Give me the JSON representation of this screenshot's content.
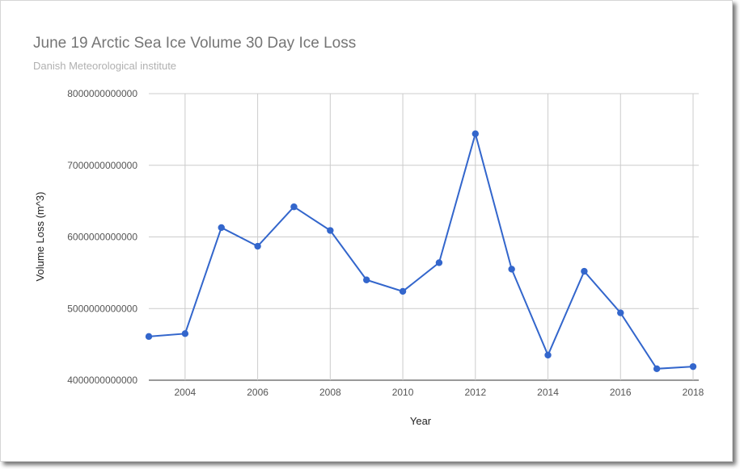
{
  "chart_data": {
    "type": "line",
    "title": "June 19 Arctic Sea Ice Volume 30 Day Ice Loss",
    "subtitle": "Danish Meteorological institute",
    "xlabel": "Year",
    "ylabel": "Volume Loss (m^3)",
    "x": [
      2003,
      2004,
      2005,
      2006,
      2007,
      2008,
      2009,
      2010,
      2011,
      2012,
      2013,
      2014,
      2015,
      2016,
      2017,
      2018
    ],
    "series": [
      {
        "values": [
          4610000000000,
          4650000000000,
          6130000000000,
          5870000000000,
          6420000000000,
          6090000000000,
          5400000000000,
          5240000000000,
          5640000000000,
          7440000000000,
          5550000000000,
          4350000000000,
          5520000000000,
          4940000000000,
          4160000000000,
          4190000000000
        ],
        "color": "#3366cc"
      }
    ],
    "xlim": [
      2003,
      2018
    ],
    "ylim": [
      4000000000000,
      8000000000000
    ],
    "x_ticks": [
      "2004",
      "2006",
      "2008",
      "2010",
      "2012",
      "2014",
      "2016",
      "2018"
    ],
    "y_ticks": [
      "4000000000000",
      "5000000000000",
      "6000000000000",
      "7000000000000",
      "8000000000000"
    ],
    "grid": true,
    "legend": "none"
  }
}
